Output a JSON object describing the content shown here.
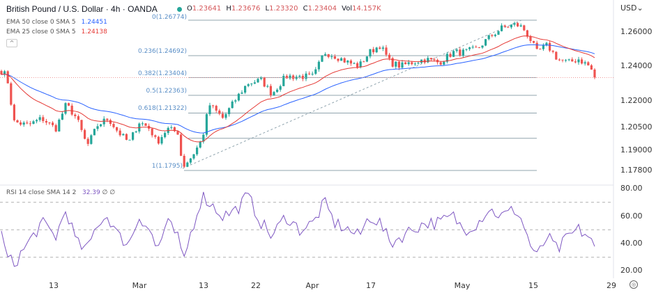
{
  "header": {
    "title": "British Pound / U.S. Dollar · 4h · OANDA",
    "open_label": "O",
    "open": "1.23641",
    "high_label": "H",
    "high": "1.23676",
    "low_label": "L",
    "low": "1.23320",
    "close_label": "C",
    "close": "1.23404",
    "vol_label": "Vol",
    "vol": "14.157K"
  },
  "indicators": [
    {
      "label": "EMA 50 close 0 SMA 5",
      "value": "1.24451",
      "color": "#2962ff"
    },
    {
      "label": "EMA 25 close 0 SMA 5",
      "value": "1.24138",
      "color": "#e53935"
    }
  ],
  "currency": "USD",
  "currency_caret": "⌄",
  "rsi": {
    "label": "RSI 14 close SMA 14 2",
    "value": "32.39",
    "extra1": "∅",
    "extra2": "∅"
  },
  "chart_data": {
    "type": "candlestick",
    "price_axis": {
      "ticks": [
        "1.26000",
        "1.24000",
        "1.22000",
        "1.20500",
        "1.19000",
        "1.17800"
      ]
    },
    "time_axis": {
      "ticks": [
        "13",
        "Mar",
        "13",
        "22",
        "Apr",
        "17",
        "May",
        "15",
        "29"
      ]
    },
    "close": [
      1.2387,
      1.2347,
      1.2081,
      1.206,
      1.2101,
      1.204,
      1.2183,
      1.2101,
      1.1938,
      1.206,
      1.2101,
      1.2019,
      1.1958,
      1.2081,
      1.204,
      1.1958,
      1.204,
      1.2019,
      1.1815,
      1.1876,
      1.1979,
      1.2183,
      1.2101,
      1.2224,
      1.2306,
      1.2326,
      1.2244,
      1.2347,
      1.2347,
      1.2347,
      1.2489,
      1.2469,
      1.2428,
      1.2408,
      1.2489,
      1.253,
      1.2428,
      1.2408,
      1.2428,
      1.2449,
      1.2428,
      1.2489,
      1.2489,
      1.251,
      1.2571,
      1.2632,
      1.2653,
      1.2632,
      1.2571,
      1.2489,
      1.253,
      1.2449,
      1.2428,
      1.2449,
      1.2408,
      1.234
    ],
    "rsi_values": [
      50,
      30,
      25,
      40,
      55,
      45,
      65,
      40,
      35,
      55,
      60,
      45,
      40,
      60,
      50,
      35,
      55,
      45,
      25,
      50,
      75,
      70,
      60,
      65,
      75,
      55,
      45,
      60,
      50,
      55,
      70,
      55,
      50,
      45,
      60,
      55,
      40,
      45,
      50,
      55,
      55,
      60,
      50,
      55,
      65,
      60,
      65,
      55,
      40,
      30,
      45,
      35,
      45,
      50,
      45,
      33
    ],
    "rsi_axis": {
      "ticks": [
        "80.00",
        "60.00",
        "40.00",
        "20.00"
      ],
      "levels": [
        70,
        50,
        30
      ]
    },
    "fibonacci": [
      {
        "ratio": 0,
        "label": "0(1.26774)"
      },
      {
        "ratio": 0.236,
        "label": "0.236(1.24692)"
      },
      {
        "ratio": 0.382,
        "label": "0.382(1.23404)"
      },
      {
        "ratio": 0.5,
        "label": "0.5(1.22363)"
      },
      {
        "ratio": 0.618,
        "label": "0.618(1.21322)"
      },
      {
        "ratio": 0.786,
        "label": ""
      },
      {
        "ratio": 1,
        "label": "1(1.1795)"
      }
    ],
    "colors": {
      "up": "#26a69a",
      "down": "#ef5350",
      "ema50": "#2962ff",
      "ema25": "#e53935",
      "rsi": "#7e57c2",
      "fib": "#90a4ae"
    }
  }
}
